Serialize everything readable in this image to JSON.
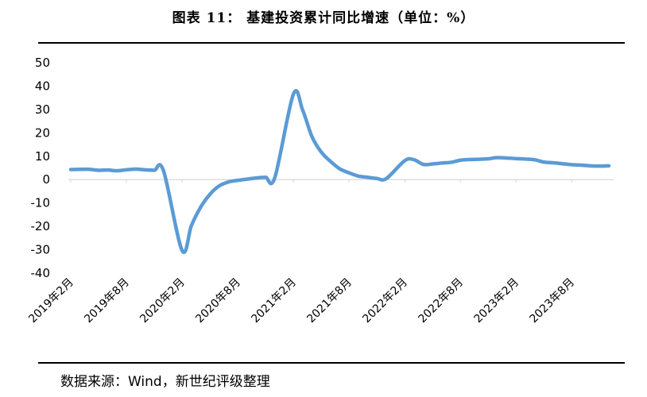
{
  "title": "图表 11： 基建投资累计同比增速（单位：%）",
  "source": "数据来源：Wind，新世纪评级整理",
  "colors": {
    "line": "#5B9BD5",
    "axis": "#D9D9D9",
    "text": "#595959"
  },
  "chart_data": {
    "type": "line",
    "title": "基建投资累计同比增速（单位：%）",
    "xlabel": "",
    "ylabel": "",
    "ylim": [
      -40,
      50
    ],
    "yticks": [
      50,
      40,
      30,
      20,
      10,
      0,
      -10,
      -20,
      -30,
      -40
    ],
    "grid": false,
    "x_tick_labels": [
      "2019年2月",
      "2019年8月",
      "2020年2月",
      "2020年8月",
      "2021年2月",
      "2021年8月",
      "2022年2月",
      "2022年8月",
      "2023年2月",
      "2023年8月"
    ],
    "x": [
      "2019-02",
      "2019-03",
      "2019-04",
      "2019-05",
      "2019-06",
      "2019-07",
      "2019-08",
      "2019-09",
      "2019-10",
      "2019-11",
      "2019-12",
      "2020-02",
      "2020-03",
      "2020-04",
      "2020-05",
      "2020-06",
      "2020-07",
      "2020-08",
      "2020-09",
      "2020-10",
      "2020-11",
      "2020-12",
      "2021-02",
      "2021-03",
      "2021-04",
      "2021-05",
      "2021-06",
      "2021-07",
      "2021-08",
      "2021-09",
      "2021-10",
      "2021-11",
      "2021-12",
      "2022-02",
      "2022-03",
      "2022-04",
      "2022-05",
      "2022-06",
      "2022-07",
      "2022-08",
      "2022-09",
      "2022-10",
      "2022-11",
      "2022-12",
      "2023-02",
      "2023-03",
      "2023-04",
      "2023-05",
      "2023-06",
      "2023-07",
      "2023-08",
      "2023-09",
      "2023-10",
      "2023-11",
      "2023-12"
    ],
    "series": [
      {
        "values": [
          4.3,
          4.4,
          4.4,
          4.0,
          4.1,
          3.8,
          4.2,
          4.5,
          4.2,
          4.0,
          3.8,
          -30.3,
          -19.7,
          -11.8,
          -6.3,
          -2.7,
          -1.0,
          -0.3,
          0.2,
          0.7,
          1.0,
          0.9,
          36.6,
          29.7,
          18.4,
          11.8,
          7.8,
          4.6,
          2.9,
          1.5,
          1.0,
          0.5,
          0.4,
          8.1,
          8.5,
          6.5,
          6.7,
          7.1,
          7.4,
          8.3,
          8.6,
          8.7,
          8.9,
          9.4,
          9.0,
          8.8,
          8.5,
          7.5,
          7.2,
          6.8,
          6.4,
          6.2,
          5.9,
          5.8,
          5.9
        ]
      }
    ]
  }
}
